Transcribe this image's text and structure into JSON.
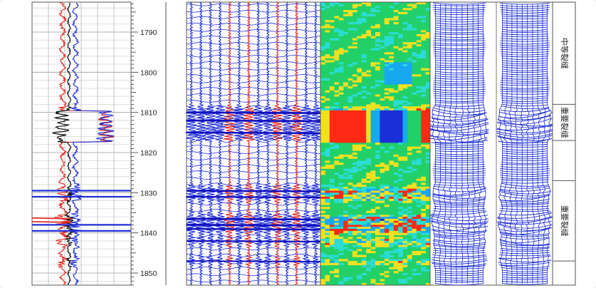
{
  "chart_data": {
    "type": "well-log",
    "depth_axis": {
      "range": [
        1780,
        1854
      ],
      "ticks": [
        1790,
        1800,
        1810,
        1820,
        1830,
        1840,
        1850
      ],
      "tick_labels": [
        "1790",
        "1800",
        "1810",
        "1820",
        "1830",
        "1840",
        "1850"
      ]
    },
    "tracks": [
      {
        "kind": "curves",
        "series_colors": [
          "#e0211a",
          "#1f2fd6",
          "#111111"
        ]
      },
      {
        "kind": "waveform-traces",
        "colors": [
          "#1f2fd6",
          "#e0211a"
        ]
      },
      {
        "kind": "heatmap",
        "colormap": [
          "#1a2fd8",
          "#18a8f0",
          "#2adcd4",
          "#22d06a",
          "#f0e020",
          "#ff2a14"
        ]
      },
      {
        "kind": "borehole-images",
        "count": 2,
        "color": "#1f2fd6"
      },
      {
        "kind": "interpretation"
      }
    ],
    "interpretation": [
      {
        "label": "中等裂缝",
        "top": 1780,
        "bottom": 1808
      },
      {
        "label": "重要裂缝",
        "top": 1808,
        "bottom": 1817
      },
      {
        "label": "",
        "top": 1817,
        "bottom": 1827
      },
      {
        "label": "重要裂缝",
        "top": 1827,
        "bottom": 1847
      },
      {
        "label": "",
        "top": 1847,
        "bottom": 1854
      }
    ],
    "events": [
      {
        "depth": 1810,
        "strength": 0.95
      },
      {
        "depth": 1812,
        "strength": 0.9
      },
      {
        "depth": 1815,
        "strength": 0.85
      },
      {
        "depth": 1829.5,
        "strength": 0.8
      },
      {
        "depth": 1831,
        "strength": 0.7
      },
      {
        "depth": 1836.5,
        "strength": 0.9
      },
      {
        "depth": 1838,
        "strength": 1.0
      },
      {
        "depth": 1839,
        "strength": 0.8
      },
      {
        "depth": 1842,
        "strength": 0.6
      },
      {
        "depth": 1847,
        "strength": 0.5
      }
    ],
    "grid": true,
    "legend": "none"
  }
}
